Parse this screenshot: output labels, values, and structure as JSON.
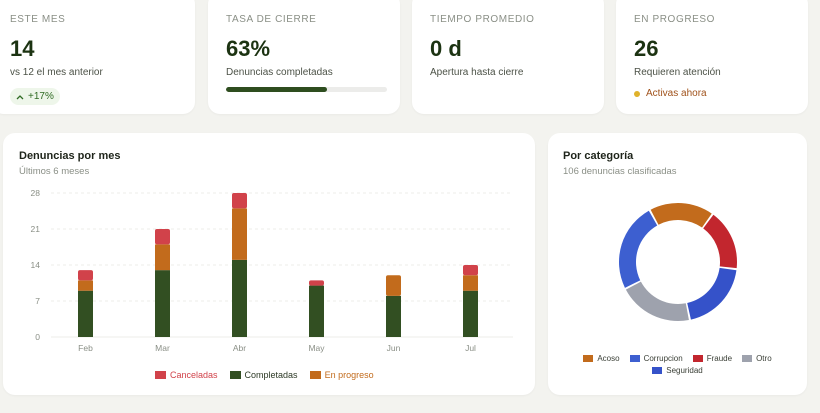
{
  "kpis": [
    {
      "label": "ESTE MES",
      "value": "14",
      "sub": "vs 12 el mes anterior",
      "badge": "+17%"
    },
    {
      "label": "TASA DE CIERRE",
      "value": "63%",
      "sub": "Denuncias completadas",
      "progress": 63
    },
    {
      "label": "TIEMPO PROMEDIO",
      "value": "0 d",
      "sub": "Apertura hasta cierre"
    },
    {
      "label": "EN PROGRESO",
      "value": "26",
      "sub": "Requieren atención",
      "status": "Activas ahora"
    }
  ],
  "colors": {
    "completadas": "#324f22",
    "en_progreso": "#c26b1c",
    "canceladas": "#d1424a",
    "acoso": "#c26b1c",
    "corrupcion": "#3d5fd0",
    "fraude": "#c2262e",
    "otro": "#9ea2ad",
    "seguridad": "#3552c9"
  },
  "chart_data": [
    {
      "type": "bar",
      "stacked": true,
      "title": "Denuncias por mes",
      "subtitle": "Últimos 6 meses",
      "categories": [
        "Feb",
        "Mar",
        "Abr",
        "May",
        "Jun",
        "Jul"
      ],
      "yticks": [
        0,
        7,
        14,
        21,
        28
      ],
      "ylim": [
        0,
        28
      ],
      "series": [
        {
          "name": "Completadas",
          "values": [
            9,
            13,
            15,
            10,
            8,
            9
          ]
        },
        {
          "name": "En progreso",
          "values": [
            2,
            5,
            10,
            0,
            4,
            3
          ]
        },
        {
          "name": "Canceladas",
          "values": [
            2,
            3,
            3,
            1,
            0,
            2
          ]
        }
      ],
      "legend_order": [
        "Canceladas",
        "Completadas",
        "En progreso"
      ],
      "legend": "bottom"
    },
    {
      "type": "pie",
      "donut": true,
      "title": "Por categoría",
      "subtitle": "106 denuncias clasificadas",
      "slices": [
        {
          "name": "Acoso",
          "value": 19
        },
        {
          "name": "Fraude",
          "value": 18
        },
        {
          "name": "Seguridad",
          "value": 21
        },
        {
          "name": "Otro",
          "value": 22
        },
        {
          "name": "Corrupcion",
          "value": 26
        }
      ],
      "legend_order": [
        "Acoso",
        "Corrupcion",
        "Fraude",
        "Otro",
        "Seguridad"
      ],
      "legend": "bottom"
    }
  ]
}
